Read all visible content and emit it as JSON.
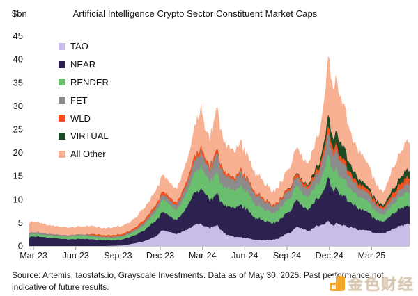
{
  "header": {
    "title": "Artificial Intelligence Crypto Sector Constituent Market Caps",
    "unit_label": "$bn"
  },
  "footer": {
    "source": "Source: Artemis, taostats.io, Grayscale Investments. Data as of May 30, 2025. Past performance not indicative of future results."
  },
  "watermark": {
    "text": "金色财经",
    "icon_color": "#f2a118"
  },
  "chart_data": {
    "type": "area",
    "variant": "stacked-area",
    "title": "Artificial Intelligence Crypto Sector Constituent Market Caps",
    "ylabel": "$bn",
    "xlabel": "",
    "grid": false,
    "legend_position": "upper-left-inside",
    "ylim": [
      0,
      45
    ],
    "y_ticks": [
      0,
      5,
      10,
      15,
      20,
      25,
      30,
      35,
      40,
      45
    ],
    "x_ticks": [
      {
        "label": "Mar-23",
        "month": 0
      },
      {
        "label": "Jun-23",
        "month": 3
      },
      {
        "label": "Sep-23",
        "month": 6
      },
      {
        "label": "Dec-23",
        "month": 9
      },
      {
        "label": "Mar-24",
        "month": 12
      },
      {
        "label": "Jun-24",
        "month": 15
      },
      {
        "label": "Sep-24",
        "month": 18
      },
      {
        "label": "Dec-24",
        "month": 21
      },
      {
        "label": "Mar-25",
        "month": 24
      }
    ],
    "x_range_months": [
      0,
      27
    ],
    "x_note": "months since Mar-2023; series end May 30, 2025",
    "anchors_x": [
      0,
      0.5,
      1,
      1.5,
      2,
      2.5,
      3,
      3.5,
      4,
      4.5,
      5,
      5.5,
      6,
      6.5,
      7,
      7.5,
      8,
      8.5,
      9,
      9.3,
      9.6,
      10,
      10.5,
      11,
      11.3,
      11.6,
      12,
      12.2,
      12.5,
      12.8,
      13.1,
      13.35,
      13.7,
      14,
      14.5,
      15,
      15.5,
      16,
      16.5,
      17,
      17.3,
      17.7,
      18,
      18.5,
      19,
      19.3,
      19.7,
      20,
      20.3,
      20.7,
      21,
      21.25,
      21.5,
      21.8,
      22,
      22.4,
      22.8,
      23.2,
      23.6,
      24,
      24.4,
      24.8,
      25.1,
      25.4,
      25.8,
      26.3,
      26.7,
      27
    ],
    "series": [
      {
        "name": "TAO",
        "color": "#c7bde6",
        "values": [
          0,
          0,
          0,
          0,
          0,
          0,
          0,
          0,
          0,
          0,
          0,
          0,
          0.05,
          0.1,
          0.3,
          0.6,
          0.9,
          1.5,
          2.2,
          3.0,
          3.2,
          2.9,
          2.6,
          3.2,
          3.8,
          4.2,
          4.5,
          4.6,
          4.1,
          4.0,
          4.2,
          4.4,
          3.2,
          2.4,
          2.1,
          1.8,
          1.6,
          1.4,
          1.2,
          1.3,
          1.4,
          1.7,
          2.2,
          3.0,
          4.0,
          3.6,
          3.3,
          3.6,
          4.0,
          4.4,
          5.0,
          5.5,
          4.6,
          4.9,
          4.3,
          4.4,
          3.9,
          3.6,
          3.5,
          3.4,
          3.0,
          2.7,
          2.6,
          3.0,
          3.6,
          4.2,
          4.6,
          4.5
        ]
      },
      {
        "name": "NEAR",
        "color": "#2d2150",
        "values": [
          1.9,
          2.1,
          1.8,
          1.7,
          1.6,
          1.5,
          1.4,
          1.5,
          1.5,
          1.4,
          1.3,
          1.25,
          1.2,
          1.3,
          1.4,
          1.8,
          2.2,
          2.7,
          3.4,
          3.6,
          3.9,
          3.4,
          3.1,
          4.0,
          5.2,
          6.5,
          7.2,
          7.5,
          6.6,
          6.2,
          6.4,
          6.6,
          5.6,
          5.8,
          6.3,
          6.8,
          6.0,
          4.8,
          4.3,
          3.9,
          3.6,
          3.9,
          4.2,
          4.8,
          5.6,
          5.0,
          4.6,
          5.0,
          5.6,
          6.5,
          8.0,
          9.5,
          7.6,
          8.2,
          6.6,
          6.2,
          5.2,
          4.6,
          4.2,
          3.8,
          3.3,
          2.8,
          2.5,
          2.8,
          3.2,
          3.7,
          4.0,
          3.8
        ]
      },
      {
        "name": "RENDER",
        "color": "#6abf6e",
        "values": [
          0.5,
          0.55,
          0.5,
          0.5,
          0.5,
          0.55,
          0.6,
          0.65,
          0.7,
          0.6,
          0.55,
          0.5,
          0.5,
          0.55,
          0.6,
          0.8,
          1.0,
          1.4,
          2.0,
          2.3,
          2.5,
          2.4,
          2.2,
          2.8,
          3.3,
          4.0,
          4.6,
          4.9,
          4.2,
          4.0,
          4.2,
          4.3,
          3.7,
          3.7,
          4.0,
          4.0,
          3.5,
          2.9,
          2.6,
          2.3,
          2.2,
          2.4,
          2.5,
          2.8,
          3.0,
          2.8,
          2.6,
          2.8,
          3.1,
          3.6,
          4.2,
          4.6,
          4.0,
          4.2,
          3.6,
          3.4,
          2.9,
          2.6,
          2.5,
          2.4,
          2.1,
          1.7,
          1.5,
          1.7,
          2.1,
          2.5,
          2.9,
          2.7
        ]
      },
      {
        "name": "FET",
        "color": "#8c8c8c",
        "values": [
          0.35,
          0.4,
          0.35,
          0.3,
          0.3,
          0.28,
          0.26,
          0.28,
          0.3,
          0.28,
          0.26,
          0.25,
          0.25,
          0.28,
          0.3,
          0.4,
          0.5,
          0.6,
          0.85,
          1.0,
          1.05,
          1.0,
          0.95,
          1.4,
          1.9,
          2.5,
          2.9,
          3.0,
          2.5,
          2.4,
          3.2,
          4.0,
          3.0,
          2.4,
          2.2,
          3.0,
          2.6,
          2.2,
          1.9,
          1.5,
          1.4,
          1.5,
          1.6,
          1.7,
          1.8,
          1.7,
          1.6,
          1.7,
          2.1,
          2.7,
          3.6,
          4.4,
          3.6,
          3.9,
          3.3,
          3.0,
          2.5,
          2.1,
          1.9,
          1.8,
          1.5,
          1.2,
          1.1,
          1.2,
          1.4,
          1.6,
          1.9,
          1.7
        ]
      },
      {
        "name": "WLD",
        "color": "#f0511f",
        "values": [
          0,
          0,
          0,
          0,
          0,
          0,
          0,
          0,
          0,
          0.25,
          0.3,
          0.28,
          0.3,
          0.32,
          0.35,
          0.42,
          0.5,
          0.55,
          0.6,
          0.65,
          0.7,
          0.65,
          0.6,
          0.7,
          0.8,
          0.9,
          1.0,
          1.05,
          0.85,
          0.8,
          0.85,
          0.9,
          0.75,
          0.55,
          0.5,
          0.6,
          0.5,
          0.45,
          0.4,
          0.35,
          0.35,
          0.4,
          0.45,
          0.55,
          0.7,
          0.65,
          0.6,
          0.7,
          0.85,
          1.0,
          1.3,
          1.5,
          1.25,
          1.35,
          1.1,
          1.0,
          0.9,
          0.85,
          0.8,
          0.8,
          0.7,
          0.55,
          0.5,
          0.7,
          1.0,
          1.3,
          1.5,
          1.45
        ]
      },
      {
        "name": "VIRTUAL",
        "color": "#1d4a24",
        "values": [
          0,
          0,
          0,
          0,
          0,
          0,
          0,
          0,
          0,
          0,
          0,
          0,
          0,
          0,
          0,
          0,
          0,
          0,
          0,
          0,
          0,
          0,
          0,
          0,
          0,
          0,
          0,
          0,
          0,
          0,
          0,
          0,
          0,
          0,
          0,
          0,
          0,
          0,
          0,
          0,
          0,
          0,
          0.05,
          0.1,
          0.15,
          0.2,
          0.3,
          0.5,
          0.7,
          1.0,
          1.8,
          2.5,
          2.2,
          2.8,
          3.0,
          2.5,
          1.7,
          1.2,
          0.9,
          0.7,
          0.55,
          0.5,
          0.45,
          0.6,
          0.9,
          1.3,
          1.7,
          1.5
        ]
      },
      {
        "name": "All Other",
        "color": "#f8b093",
        "values": [
          2.1,
          2.4,
          2.0,
          1.9,
          1.8,
          1.75,
          1.7,
          1.8,
          1.8,
          1.7,
          1.6,
          1.55,
          1.7,
          1.8,
          1.9,
          2.2,
          2.5,
          2.8,
          3.2,
          3.3,
          3.5,
          3.3,
          3.1,
          3.8,
          4.6,
          5.8,
          7.0,
          8.5,
          6.0,
          6.3,
          7.5,
          9.0,
          7.0,
          6.0,
          6.2,
          5.8,
          4.8,
          4.1,
          3.6,
          3.2,
          3.0,
          3.3,
          3.6,
          4.2,
          5.5,
          4.8,
          4.4,
          4.8,
          5.8,
          7.5,
          10.0,
          13.0,
          10.5,
          11.5,
          9.3,
          8.3,
          7.2,
          6.2,
          5.5,
          4.8,
          4.0,
          3.2,
          2.9,
          3.4,
          4.6,
          5.6,
          6.5,
          6.0
        ]
      }
    ]
  }
}
